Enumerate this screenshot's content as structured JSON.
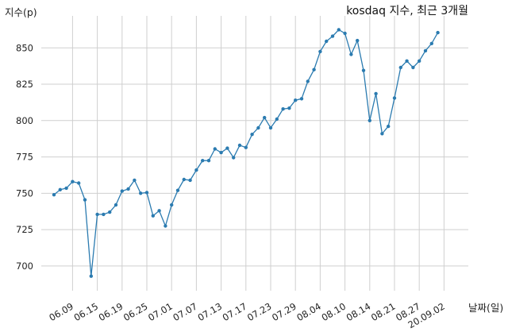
{
  "chart_data": {
    "type": "line",
    "title": "kosdaq 지수, 최근 3개월",
    "xlabel": "날짜(일)",
    "ylabel": "지수(p)",
    "ylim": [
      683,
      872
    ],
    "grid": true,
    "y_ticks": [
      700,
      725,
      750,
      775,
      800,
      825,
      850
    ],
    "x_tick_labels": [
      "06.09",
      "06.15",
      "06.19",
      "06.25",
      "07.01",
      "07.07",
      "07.13",
      "07.17",
      "07.23",
      "07.29",
      "08.04",
      "08.10",
      "08.14",
      "08.21",
      "08.27",
      "20.09.02"
    ],
    "x_tick_index": [
      3,
      7,
      11,
      15,
      19,
      23,
      27,
      31,
      35,
      39,
      43,
      47,
      51,
      55,
      59,
      63
    ],
    "tick_label_rotation": "30deg",
    "series": [
      {
        "color": "#2b7bb0",
        "values": [
          749,
          752.5,
          753.5,
          758,
          757,
          745.5,
          693,
          735.5,
          735.5,
          737,
          742,
          751.5,
          753,
          759,
          750,
          750.5,
          734.5,
          738,
          727.5,
          742,
          752,
          759.5,
          759,
          766,
          772.5,
          772.5,
          780.5,
          778,
          781,
          774.5,
          783,
          781.5,
          790.5,
          795,
          802,
          795,
          801,
          808,
          808.5,
          814,
          815,
          827,
          835,
          847.5,
          854.5,
          858,
          862.5,
          860,
          845.5,
          855,
          834.5,
          800,
          818.5,
          791,
          796,
          815.5,
          836.5,
          841,
          836.5,
          841,
          848,
          853,
          860.5
        ]
      }
    ]
  }
}
